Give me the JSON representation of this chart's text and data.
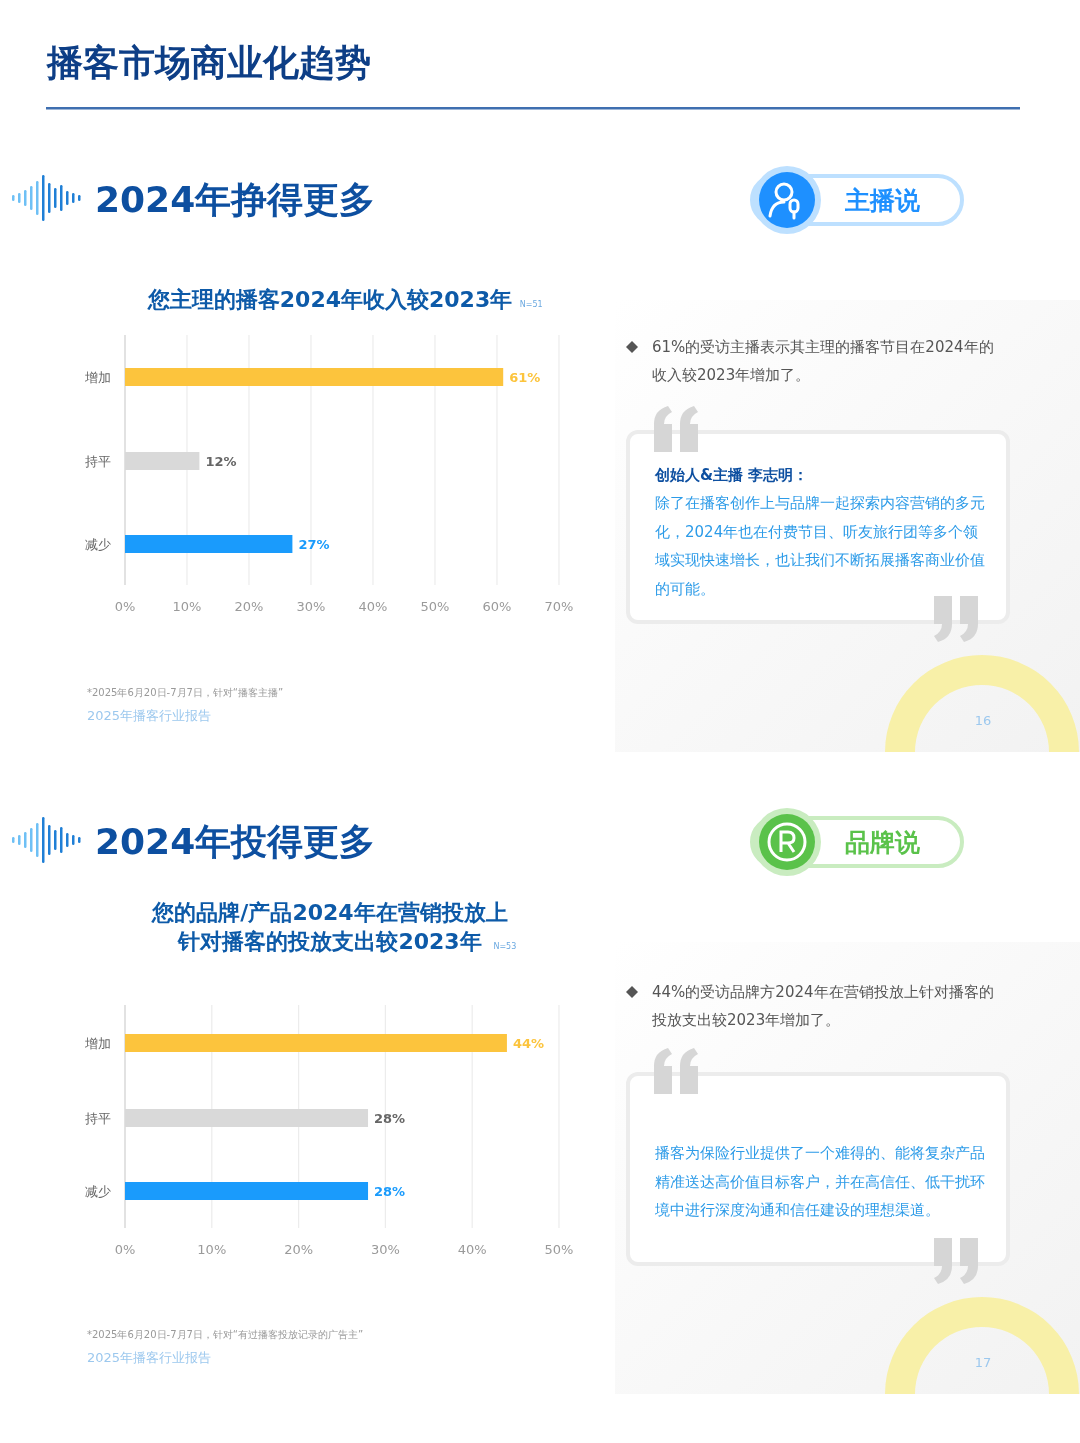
{
  "chart_data": [
    {
      "type": "bar",
      "orientation": "horizontal",
      "title": "您主理的播客2024年收入较2023年",
      "subtitle": "N=51",
      "categories": [
        "增加",
        "持平",
        "减少"
      ],
      "values": [
        61,
        12,
        27
      ],
      "colors": [
        "#fcc43d",
        "#d9d9d9",
        "#1a9bfc"
      ],
      "value_labels": [
        "61%",
        "12%",
        "27%"
      ],
      "xlim": [
        0,
        70
      ],
      "xticks": [
        {
          "value": 0,
          "label": "0%"
        },
        {
          "value": 10,
          "label": "10%"
        },
        {
          "value": 20,
          "label": "20%"
        },
        {
          "value": 30,
          "label": "30%"
        },
        {
          "value": 40,
          "label": "40%"
        },
        {
          "value": 50,
          "label": "50%"
        },
        {
          "value": 60,
          "label": "60%"
        },
        {
          "value": 70,
          "label": "70%"
        }
      ],
      "grid": "x",
      "annotations": [
        "播客市场商业化趋势",
        "2024年挣得更多",
        "主播说",
        "61%的受访主播表示其主理的播客节目在2024年的收入较2023年增加了。",
        "创始人&主播 李志明：",
        "除了在播客创作上与品牌一起探索内容营销的多元化，2024年也在付费节目、听友旅行团等多个领域实现快速增长，也让我们不断拓展播客商业价值的可能。",
        "*2025年6月20日-7月7日，针对“播客主播”",
        "2025年播客行业报告",
        "16"
      ]
    },
    {
      "type": "bar",
      "orientation": "horizontal",
      "title": "您的品牌/产品2024年在营销投放上针对播客的投放支出较2023年",
      "subtitle": "N=53",
      "categories": [
        "增加",
        "持平",
        "减少"
      ],
      "values": [
        44,
        28,
        28
      ],
      "colors": [
        "#fcc43d",
        "#d9d9d9",
        "#1a9bfc"
      ],
      "value_labels": [
        "44%",
        "28%",
        "28%"
      ],
      "xlim": [
        0,
        50
      ],
      "xticks": [
        {
          "value": 0,
          "label": "0%"
        },
        {
          "value": 10,
          "label": "10%"
        },
        {
          "value": 20,
          "label": "20%"
        },
        {
          "value": 30,
          "label": "30%"
        },
        {
          "value": 40,
          "label": "40%"
        },
        {
          "value": 50,
          "label": "50%"
        }
      ],
      "grid": "x",
      "annotations": [
        "2024年投得更多",
        "品牌说",
        "44%的受访品牌方2024年在营销投放上针对播客的投放支出较2023年增加了。",
        "播客为保险行业提供了一个难得的、能将复杂产品精准送达高价值目标客户，并在高信任、低干扰环境中进行深度沟通和信任建设的理想渠道。",
        "*2025年6月20日-7月7日，针对“有过播客投放记录的广告主”",
        "2025年播客行业报告",
        "17"
      ]
    }
  ]
}
